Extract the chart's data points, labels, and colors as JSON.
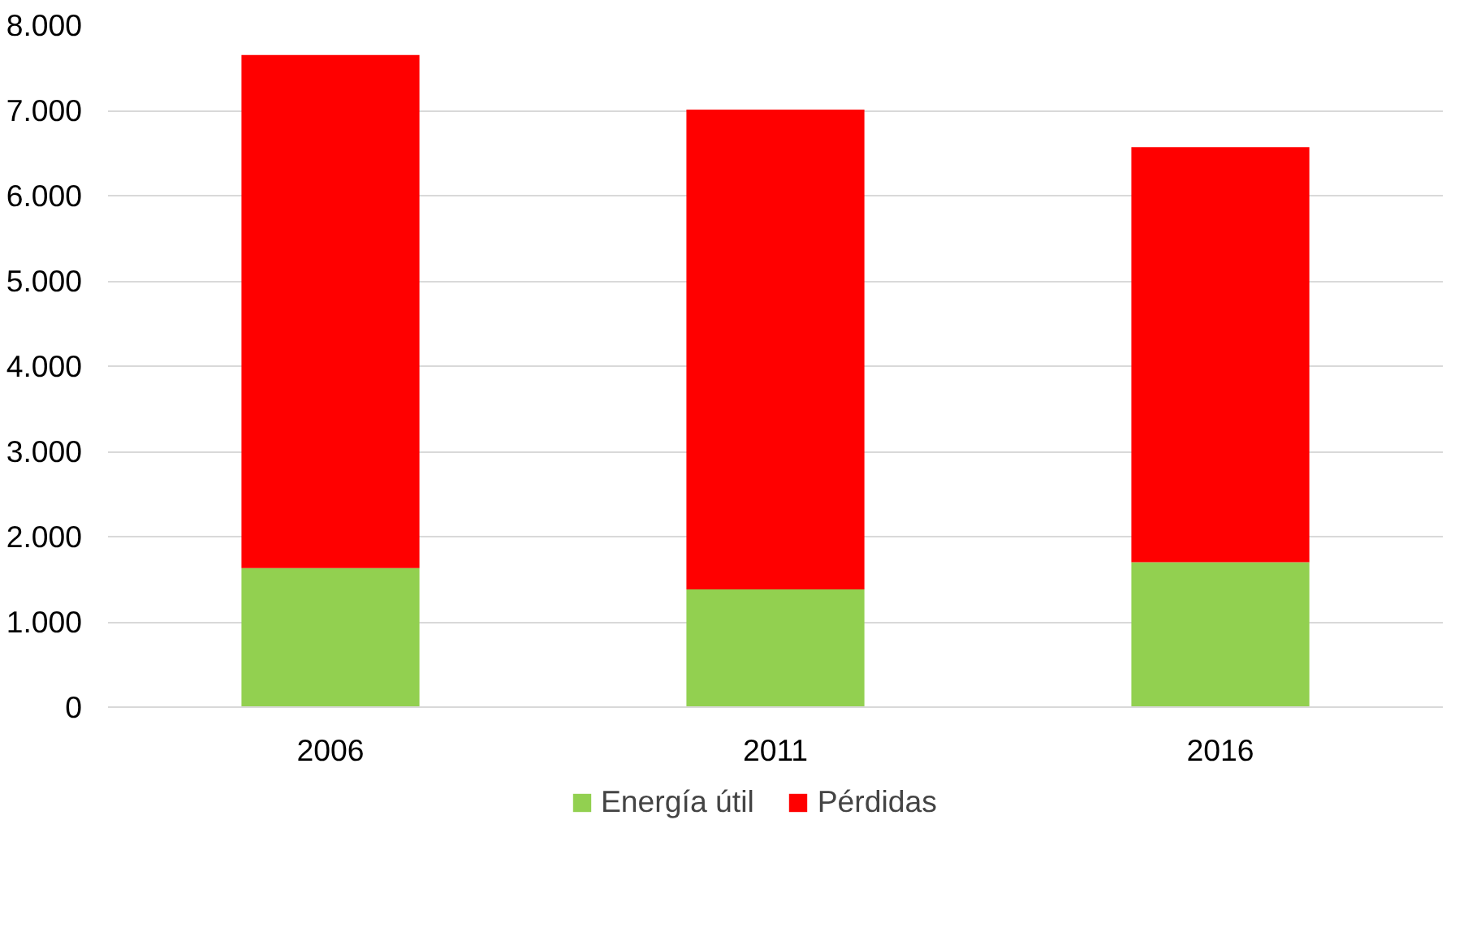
{
  "chart_data": {
    "type": "bar",
    "stacked": true,
    "categories": [
      "2006",
      "2011",
      "2016"
    ],
    "series": [
      {
        "name": "Energía útil",
        "color": "#92d050",
        "values": [
          1630,
          1380,
          1700
        ]
      },
      {
        "name": "Pérdidas",
        "color": "#ff0000",
        "values": [
          6020,
          5630,
          4870
        ]
      }
    ],
    "ylim": [
      0,
      8000
    ],
    "yticks": [
      {
        "value": 0,
        "label": "0"
      },
      {
        "value": 1000,
        "label": "1.000"
      },
      {
        "value": 2000,
        "label": "2.000"
      },
      {
        "value": 3000,
        "label": "3.000"
      },
      {
        "value": 4000,
        "label": "4.000"
      },
      {
        "value": 5000,
        "label": "5.000"
      },
      {
        "value": 6000,
        "label": "6.000"
      },
      {
        "value": 7000,
        "label": "7.000"
      },
      {
        "value": 8000,
        "label": "8.000"
      }
    ],
    "grid": "y",
    "legend": "bottom"
  }
}
